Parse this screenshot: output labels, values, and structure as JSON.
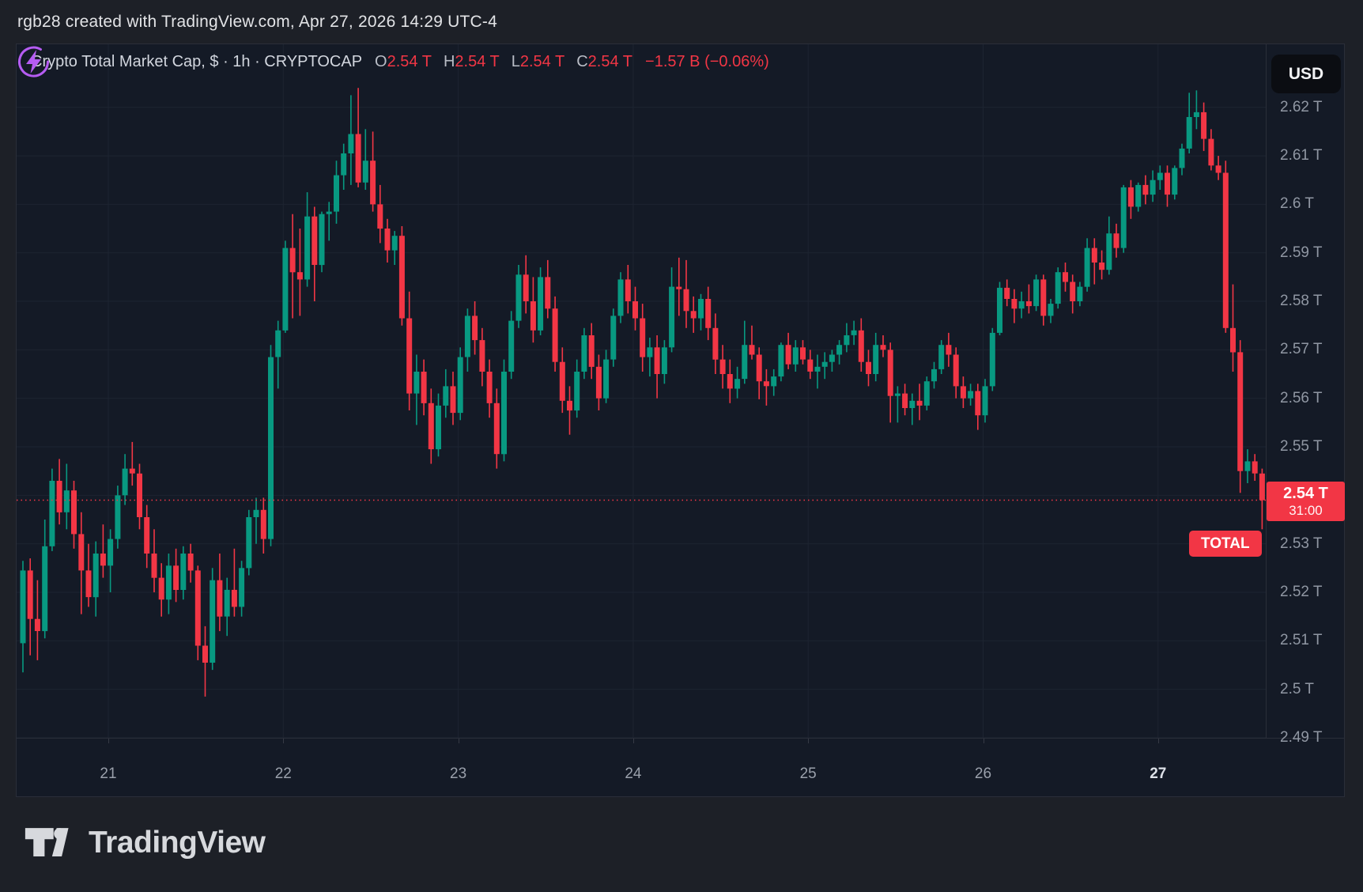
{
  "topbar": {
    "attribution": "rgb28 created with TradingView.com, Apr 27, 2026 14:29 UTC-4"
  },
  "legend": {
    "title": "Crypto Total Market Cap, $ · 1h · CRYPTOCAP",
    "ohlc": [
      {
        "k": "O",
        "v": "2.54 T"
      },
      {
        "k": "H",
        "v": "2.54 T"
      },
      {
        "k": "L",
        "v": "2.54 T"
      },
      {
        "k": "C",
        "v": "2.54 T"
      }
    ],
    "change": "−1.57 B (−0.06%)"
  },
  "currency_button": {
    "label": "USD"
  },
  "price_label": {
    "tag": "TOTAL",
    "price": "2.54 T",
    "countdown": "31:00"
  },
  "brand": {
    "name": "TradingView"
  },
  "colors": {
    "up": "#089981",
    "down": "#f23645",
    "accent_red": "#f23645",
    "pane_bg": "#141a26",
    "outer_bg": "#1d2027",
    "grid": "#1d2431",
    "axis_text": "#9097a3",
    "flash_purple": "#b55cf2"
  },
  "chart_data": {
    "type": "candlestick",
    "title": "Crypto Total Market Cap, $",
    "interval": "1h",
    "exchange": "CRYPTOCAP",
    "legend_position": "top-left",
    "grid": true,
    "last_price": 2.539,
    "y_axis": {
      "min": 2.49,
      "max": 2.633,
      "ticks": [
        {
          "label": "2.62 T",
          "value": 2.62
        },
        {
          "label": "2.61 T",
          "value": 2.61
        },
        {
          "label": "2.6 T",
          "value": 2.6
        },
        {
          "label": "2.59 T",
          "value": 2.59
        },
        {
          "label": "2.58 T",
          "value": 2.58
        },
        {
          "label": "2.57 T",
          "value": 2.57
        },
        {
          "label": "2.56 T",
          "value": 2.56
        },
        {
          "label": "2.55 T",
          "value": 2.55
        },
        {
          "label": "2.54 T",
          "value": 2.54
        },
        {
          "label": "2.53 T",
          "value": 2.53
        },
        {
          "label": "2.52 T",
          "value": 2.52
        },
        {
          "label": "2.51 T",
          "value": 2.51
        },
        {
          "label": "2.5 T",
          "value": 2.5
        },
        {
          "label": "2.49 T",
          "value": 2.49
        }
      ]
    },
    "x_axis": {
      "days": [
        {
          "label": "21",
          "d": 0,
          "current": false
        },
        {
          "label": "22",
          "d": 1,
          "current": false
        },
        {
          "label": "23",
          "d": 2,
          "current": false
        },
        {
          "label": "24",
          "d": 3,
          "current": false
        },
        {
          "label": "25",
          "d": 4,
          "current": false
        },
        {
          "label": "26",
          "d": 5,
          "current": false
        },
        {
          "label": "27",
          "d": 6,
          "current": true
        }
      ]
    },
    "candles": [
      [
        2.5095,
        2.5265,
        2.5035,
        2.5245
      ],
      [
        2.5245,
        2.527,
        2.507,
        2.5145
      ],
      [
        2.5145,
        2.5225,
        2.506,
        2.512
      ],
      [
        2.512,
        2.535,
        2.5105,
        2.5295
      ],
      [
        2.5295,
        2.5455,
        2.5285,
        2.543
      ],
      [
        2.543,
        2.5475,
        2.534,
        2.5365
      ],
      [
        2.5365,
        2.5465,
        2.533,
        2.541
      ],
      [
        2.541,
        2.543,
        2.529,
        2.532
      ],
      [
        2.532,
        2.5365,
        2.5155,
        2.5245
      ],
      [
        2.5245,
        2.53,
        2.517,
        2.519
      ],
      [
        2.519,
        2.5305,
        2.515,
        2.528
      ],
      [
        2.528,
        2.534,
        2.523,
        2.5255
      ],
      [
        2.5255,
        2.533,
        2.52,
        2.531
      ],
      [
        2.531,
        2.542,
        2.529,
        2.54
      ],
      [
        2.54,
        2.5485,
        2.538,
        2.5455
      ],
      [
        2.5455,
        2.551,
        2.542,
        2.5445
      ],
      [
        2.5445,
        2.5465,
        2.533,
        2.5355
      ],
      [
        2.5355,
        2.538,
        2.525,
        2.528
      ],
      [
        2.528,
        2.533,
        2.52,
        2.523
      ],
      [
        2.523,
        2.526,
        2.515,
        2.5185
      ],
      [
        2.5185,
        2.528,
        2.5155,
        2.5255
      ],
      [
        2.5255,
        2.529,
        2.518,
        2.5205
      ],
      [
        2.5205,
        2.5295,
        2.5185,
        2.528
      ],
      [
        2.528,
        2.53,
        2.522,
        2.5245
      ],
      [
        2.5245,
        2.5255,
        2.506,
        2.509
      ],
      [
        2.509,
        2.513,
        2.4985,
        2.5055
      ],
      [
        2.5055,
        2.525,
        2.504,
        2.5225
      ],
      [
        2.5225,
        2.528,
        2.512,
        2.515
      ],
      [
        2.515,
        2.523,
        2.511,
        2.5205
      ],
      [
        2.5205,
        2.529,
        2.515,
        2.517
      ],
      [
        2.517,
        2.5265,
        2.515,
        2.525
      ],
      [
        2.525,
        2.537,
        2.5235,
        2.5355
      ],
      [
        2.5355,
        2.5395,
        2.53,
        2.537
      ],
      [
        2.537,
        2.5395,
        2.528,
        2.531
      ],
      [
        2.531,
        2.571,
        2.5295,
        2.5685
      ],
      [
        2.5685,
        2.576,
        2.562,
        2.574
      ],
      [
        2.574,
        2.5925,
        2.5735,
        2.591
      ],
      [
        2.591,
        2.598,
        2.5765,
        2.586
      ],
      [
        2.586,
        2.595,
        2.577,
        2.5845
      ],
      [
        2.5845,
        2.6025,
        2.583,
        2.5975
      ],
      [
        2.5975,
        2.5995,
        2.58,
        2.5875
      ],
      [
        2.5875,
        2.5985,
        2.586,
        2.598
      ],
      [
        2.598,
        2.6005,
        2.5925,
        2.5985
      ],
      [
        2.5985,
        2.609,
        2.596,
        2.606
      ],
      [
        2.606,
        2.6125,
        2.603,
        2.6105
      ],
      [
        2.6105,
        2.6225,
        2.604,
        2.6145
      ],
      [
        2.6145,
        2.624,
        2.6035,
        2.6045
      ],
      [
        2.6045,
        2.6155,
        2.603,
        2.609
      ],
      [
        2.609,
        2.615,
        2.5985,
        2.6
      ],
      [
        2.6,
        2.604,
        2.592,
        2.595
      ],
      [
        2.595,
        2.597,
        2.588,
        2.5905
      ],
      [
        2.5905,
        2.5945,
        2.5875,
        2.5935
      ],
      [
        2.5935,
        2.5955,
        2.575,
        2.5765
      ],
      [
        2.5765,
        2.582,
        2.5575,
        2.561
      ],
      [
        2.561,
        2.569,
        2.5545,
        2.5655
      ],
      [
        2.5655,
        2.568,
        2.5565,
        2.559
      ],
      [
        2.559,
        2.562,
        2.5465,
        2.5495
      ],
      [
        2.5495,
        2.561,
        2.548,
        2.5585
      ],
      [
        2.5585,
        2.566,
        2.556,
        2.5625
      ],
      [
        2.5625,
        2.5655,
        2.5545,
        2.557
      ],
      [
        2.557,
        2.5705,
        2.5555,
        2.5685
      ],
      [
        2.5685,
        2.5785,
        2.5655,
        2.577
      ],
      [
        2.577,
        2.58,
        2.569,
        2.572
      ],
      [
        2.572,
        2.5745,
        2.5625,
        2.5655
      ],
      [
        2.5655,
        2.568,
        2.556,
        2.559
      ],
      [
        2.559,
        2.562,
        2.5455,
        2.5485
      ],
      [
        2.5485,
        2.568,
        2.547,
        2.5655
      ],
      [
        2.5655,
        2.578,
        2.564,
        2.576
      ],
      [
        2.576,
        2.5875,
        2.5745,
        2.5855
      ],
      [
        2.5855,
        2.5895,
        2.5775,
        2.58
      ],
      [
        2.58,
        2.585,
        2.5715,
        2.574
      ],
      [
        2.574,
        2.587,
        2.573,
        2.585
      ],
      [
        2.585,
        2.5885,
        2.5765,
        2.5785
      ],
      [
        2.5785,
        2.581,
        2.5655,
        2.5675
      ],
      [
        2.5675,
        2.5705,
        2.557,
        2.5595
      ],
      [
        2.5595,
        2.5625,
        2.5525,
        2.5575
      ],
      [
        2.5575,
        2.568,
        2.556,
        2.5655
      ],
      [
        2.5655,
        2.5745,
        2.564,
        2.573
      ],
      [
        2.573,
        2.5755,
        2.564,
        2.5665
      ],
      [
        2.5665,
        2.569,
        2.5575,
        2.56
      ],
      [
        2.56,
        2.57,
        2.559,
        2.568
      ],
      [
        2.568,
        2.5785,
        2.5665,
        2.577
      ],
      [
        2.577,
        2.586,
        2.5755,
        2.5845
      ],
      [
        2.5845,
        2.5875,
        2.5775,
        2.58
      ],
      [
        2.58,
        2.583,
        2.574,
        2.5765
      ],
      [
        2.5765,
        2.5795,
        2.5655,
        2.5685
      ],
      [
        2.5685,
        2.5725,
        2.5645,
        2.5705
      ],
      [
        2.5705,
        2.573,
        2.56,
        2.565
      ],
      [
        2.565,
        2.572,
        2.563,
        2.5705
      ],
      [
        2.5705,
        2.587,
        2.5695,
        2.583
      ],
      [
        2.583,
        2.589,
        2.577,
        2.5825
      ],
      [
        2.5825,
        2.5885,
        2.5745,
        2.578
      ],
      [
        2.578,
        2.581,
        2.5735,
        2.5765
      ],
      [
        2.5765,
        2.5815,
        2.574,
        2.5805
      ],
      [
        2.5805,
        2.583,
        2.572,
        2.5745
      ],
      [
        2.5745,
        2.5775,
        2.565,
        2.568
      ],
      [
        2.568,
        2.571,
        2.562,
        2.565
      ],
      [
        2.565,
        2.568,
        2.559,
        2.562
      ],
      [
        2.562,
        2.5665,
        2.56,
        2.564
      ],
      [
        2.564,
        2.576,
        2.563,
        2.571
      ],
      [
        2.571,
        2.575,
        2.568,
        2.569
      ],
      [
        2.569,
        2.5705,
        2.5598,
        2.5635
      ],
      [
        2.5635,
        2.566,
        2.5585,
        2.5625
      ],
      [
        2.5625,
        2.566,
        2.5605,
        2.5645
      ],
      [
        2.5645,
        2.5715,
        2.5635,
        2.571
      ],
      [
        2.571,
        2.5735,
        2.566,
        2.567
      ],
      [
        2.567,
        2.572,
        2.5655,
        2.5705
      ],
      [
        2.5705,
        2.572,
        2.567,
        2.568
      ],
      [
        2.568,
        2.57,
        2.564,
        2.5655
      ],
      [
        2.5655,
        2.569,
        2.562,
        2.5665
      ],
      [
        2.5665,
        2.5695,
        2.564,
        2.5675
      ],
      [
        2.5675,
        2.57,
        2.5655,
        2.569
      ],
      [
        2.569,
        2.572,
        2.567,
        2.571
      ],
      [
        2.571,
        2.5755,
        2.5695,
        2.573
      ],
      [
        2.573,
        2.576,
        2.571,
        2.574
      ],
      [
        2.574,
        2.5765,
        2.5655,
        2.5675
      ],
      [
        2.5675,
        2.57,
        2.5625,
        2.565
      ],
      [
        2.565,
        2.5735,
        2.5635,
        2.571
      ],
      [
        2.571,
        2.573,
        2.5685,
        2.57
      ],
      [
        2.57,
        2.5715,
        2.555,
        2.5605
      ],
      [
        2.5605,
        2.5625,
        2.555,
        2.561
      ],
      [
        2.561,
        2.563,
        2.5565,
        2.558
      ],
      [
        2.558,
        2.561,
        2.5545,
        2.5595
      ],
      [
        2.5595,
        2.563,
        2.5555,
        2.5585
      ],
      [
        2.5585,
        2.5645,
        2.5575,
        2.5635
      ],
      [
        2.5635,
        2.5675,
        2.562,
        2.566
      ],
      [
        2.566,
        2.572,
        2.565,
        2.571
      ],
      [
        2.571,
        2.5735,
        2.5665,
        2.569
      ],
      [
        2.569,
        2.5705,
        2.56,
        2.5625
      ],
      [
        2.5625,
        2.5645,
        2.558,
        2.56
      ],
      [
        2.56,
        2.563,
        2.5585,
        2.5615
      ],
      [
        2.5615,
        2.563,
        2.5535,
        2.5565
      ],
      [
        2.5565,
        2.564,
        2.555,
        2.5625
      ],
      [
        2.5625,
        2.5745,
        2.5615,
        2.5735
      ],
      [
        2.5735,
        2.584,
        2.573,
        2.5828
      ],
      [
        2.5828,
        2.5845,
        2.579,
        2.5805
      ],
      [
        2.5805,
        2.5825,
        2.5755,
        2.5785
      ],
      [
        2.5785,
        2.582,
        2.5765,
        2.58
      ],
      [
        2.58,
        2.5835,
        2.5775,
        2.579
      ],
      [
        2.579,
        2.5855,
        2.578,
        2.5845
      ],
      [
        2.5845,
        2.5855,
        2.575,
        2.577
      ],
      [
        2.577,
        2.5805,
        2.5755,
        2.5795
      ],
      [
        2.5795,
        2.587,
        2.5785,
        2.586
      ],
      [
        2.586,
        2.588,
        2.582,
        2.584
      ],
      [
        2.584,
        2.5855,
        2.5775,
        2.58
      ],
      [
        2.58,
        2.584,
        2.579,
        2.583
      ],
      [
        2.583,
        2.593,
        2.582,
        2.591
      ],
      [
        2.591,
        2.593,
        2.5835,
        2.588
      ],
      [
        2.588,
        2.5905,
        2.5845,
        2.5865
      ],
      [
        2.5865,
        2.5975,
        2.5855,
        2.594
      ],
      [
        2.594,
        2.596,
        2.589,
        2.591
      ],
      [
        2.591,
        2.604,
        2.59,
        2.6035
      ],
      [
        2.6035,
        2.605,
        2.597,
        2.5995
      ],
      [
        2.5995,
        2.6045,
        2.5985,
        2.604
      ],
      [
        2.604,
        2.606,
        2.6,
        2.602
      ],
      [
        2.602,
        2.607,
        2.6005,
        2.605
      ],
      [
        2.605,
        2.608,
        2.603,
        2.6065
      ],
      [
        2.6065,
        2.608,
        2.5995,
        2.602
      ],
      [
        2.602,
        2.608,
        2.601,
        2.6075
      ],
      [
        2.6075,
        2.6125,
        2.606,
        2.6115
      ],
      [
        2.6115,
        2.623,
        2.6105,
        2.618
      ],
      [
        2.618,
        2.6235,
        2.6155,
        2.619
      ],
      [
        2.619,
        2.621,
        2.611,
        2.6135
      ],
      [
        2.6135,
        2.6155,
        2.607,
        2.608
      ],
      [
        2.608,
        2.61,
        2.605,
        2.6065
      ],
      [
        2.6065,
        2.609,
        2.5735,
        2.5745
      ],
      [
        2.5745,
        2.5835,
        2.5655,
        2.5695
      ],
      [
        2.5695,
        2.572,
        2.5405,
        2.545
      ],
      [
        2.545,
        2.5495,
        2.5425,
        2.547
      ],
      [
        2.547,
        2.5485,
        2.543,
        2.5445
      ],
      [
        2.5445,
        2.5455,
        2.533,
        2.539
      ]
    ]
  }
}
